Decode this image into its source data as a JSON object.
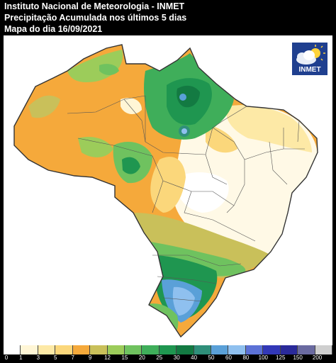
{
  "header": {
    "institute": "Instituto Nacional de Meteorologia - INMET",
    "product": "Precipitação Acumulada nos últimos 5 dias",
    "date_line": "Mapa do dia 16/09/2021"
  },
  "logo": {
    "text": "INMET",
    "icon": "weather-cloud-sun-icon"
  },
  "legend": {
    "labels": [
      "0",
      "1",
      "3",
      "5",
      "7",
      "9",
      "12",
      "15",
      "20",
      "25",
      "30",
      "40",
      "50",
      "60",
      "80",
      "100",
      "125",
      "150",
      "200"
    ],
    "colors": [
      "#ffffff",
      "#fff6d6",
      "#fde9a6",
      "#fbd77b",
      "#f5a93b",
      "#c9c05a",
      "#9ccc5a",
      "#6fc25f",
      "#3fae5a",
      "#1f9650",
      "#137a42",
      "#2f8f7a",
      "#5aa0d8",
      "#8fc0ef",
      "#5c72d6",
      "#3238b8",
      "#2a2a9a",
      "#6a6aa0",
      "#cfcfcf"
    ]
  }
}
